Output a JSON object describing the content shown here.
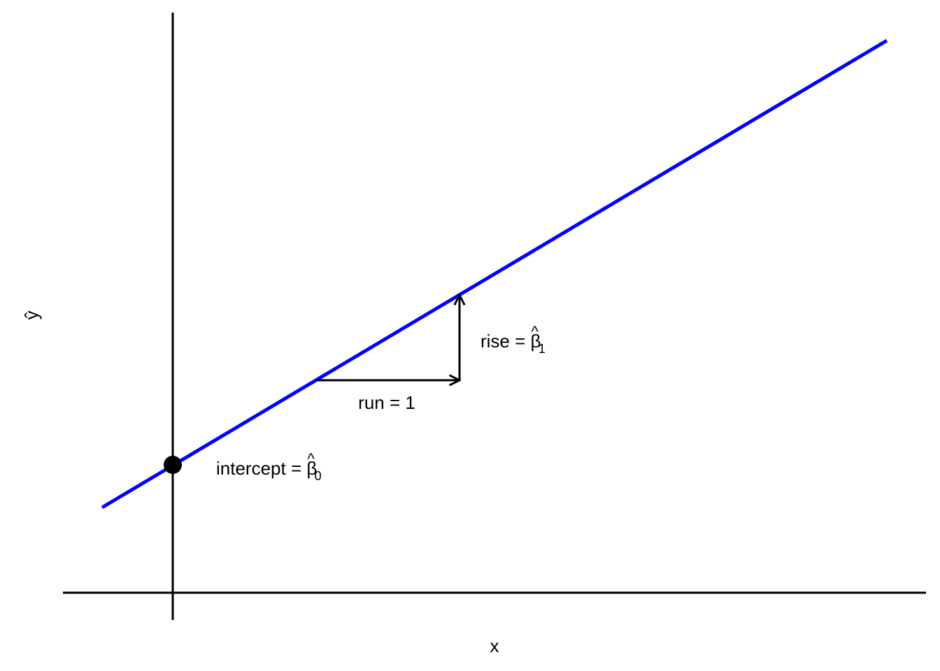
{
  "diagram": {
    "xlabel": "x",
    "ylabel": "ŷ",
    "line_color": "#0000FF",
    "run_label": "run = 1",
    "rise_label_prefix": "rise = ",
    "intercept_label_prefix": "intercept = ",
    "beta_symbol": "β",
    "hat_symbol": "^",
    "rise_subscript": "1",
    "intercept_subscript": "0"
  }
}
